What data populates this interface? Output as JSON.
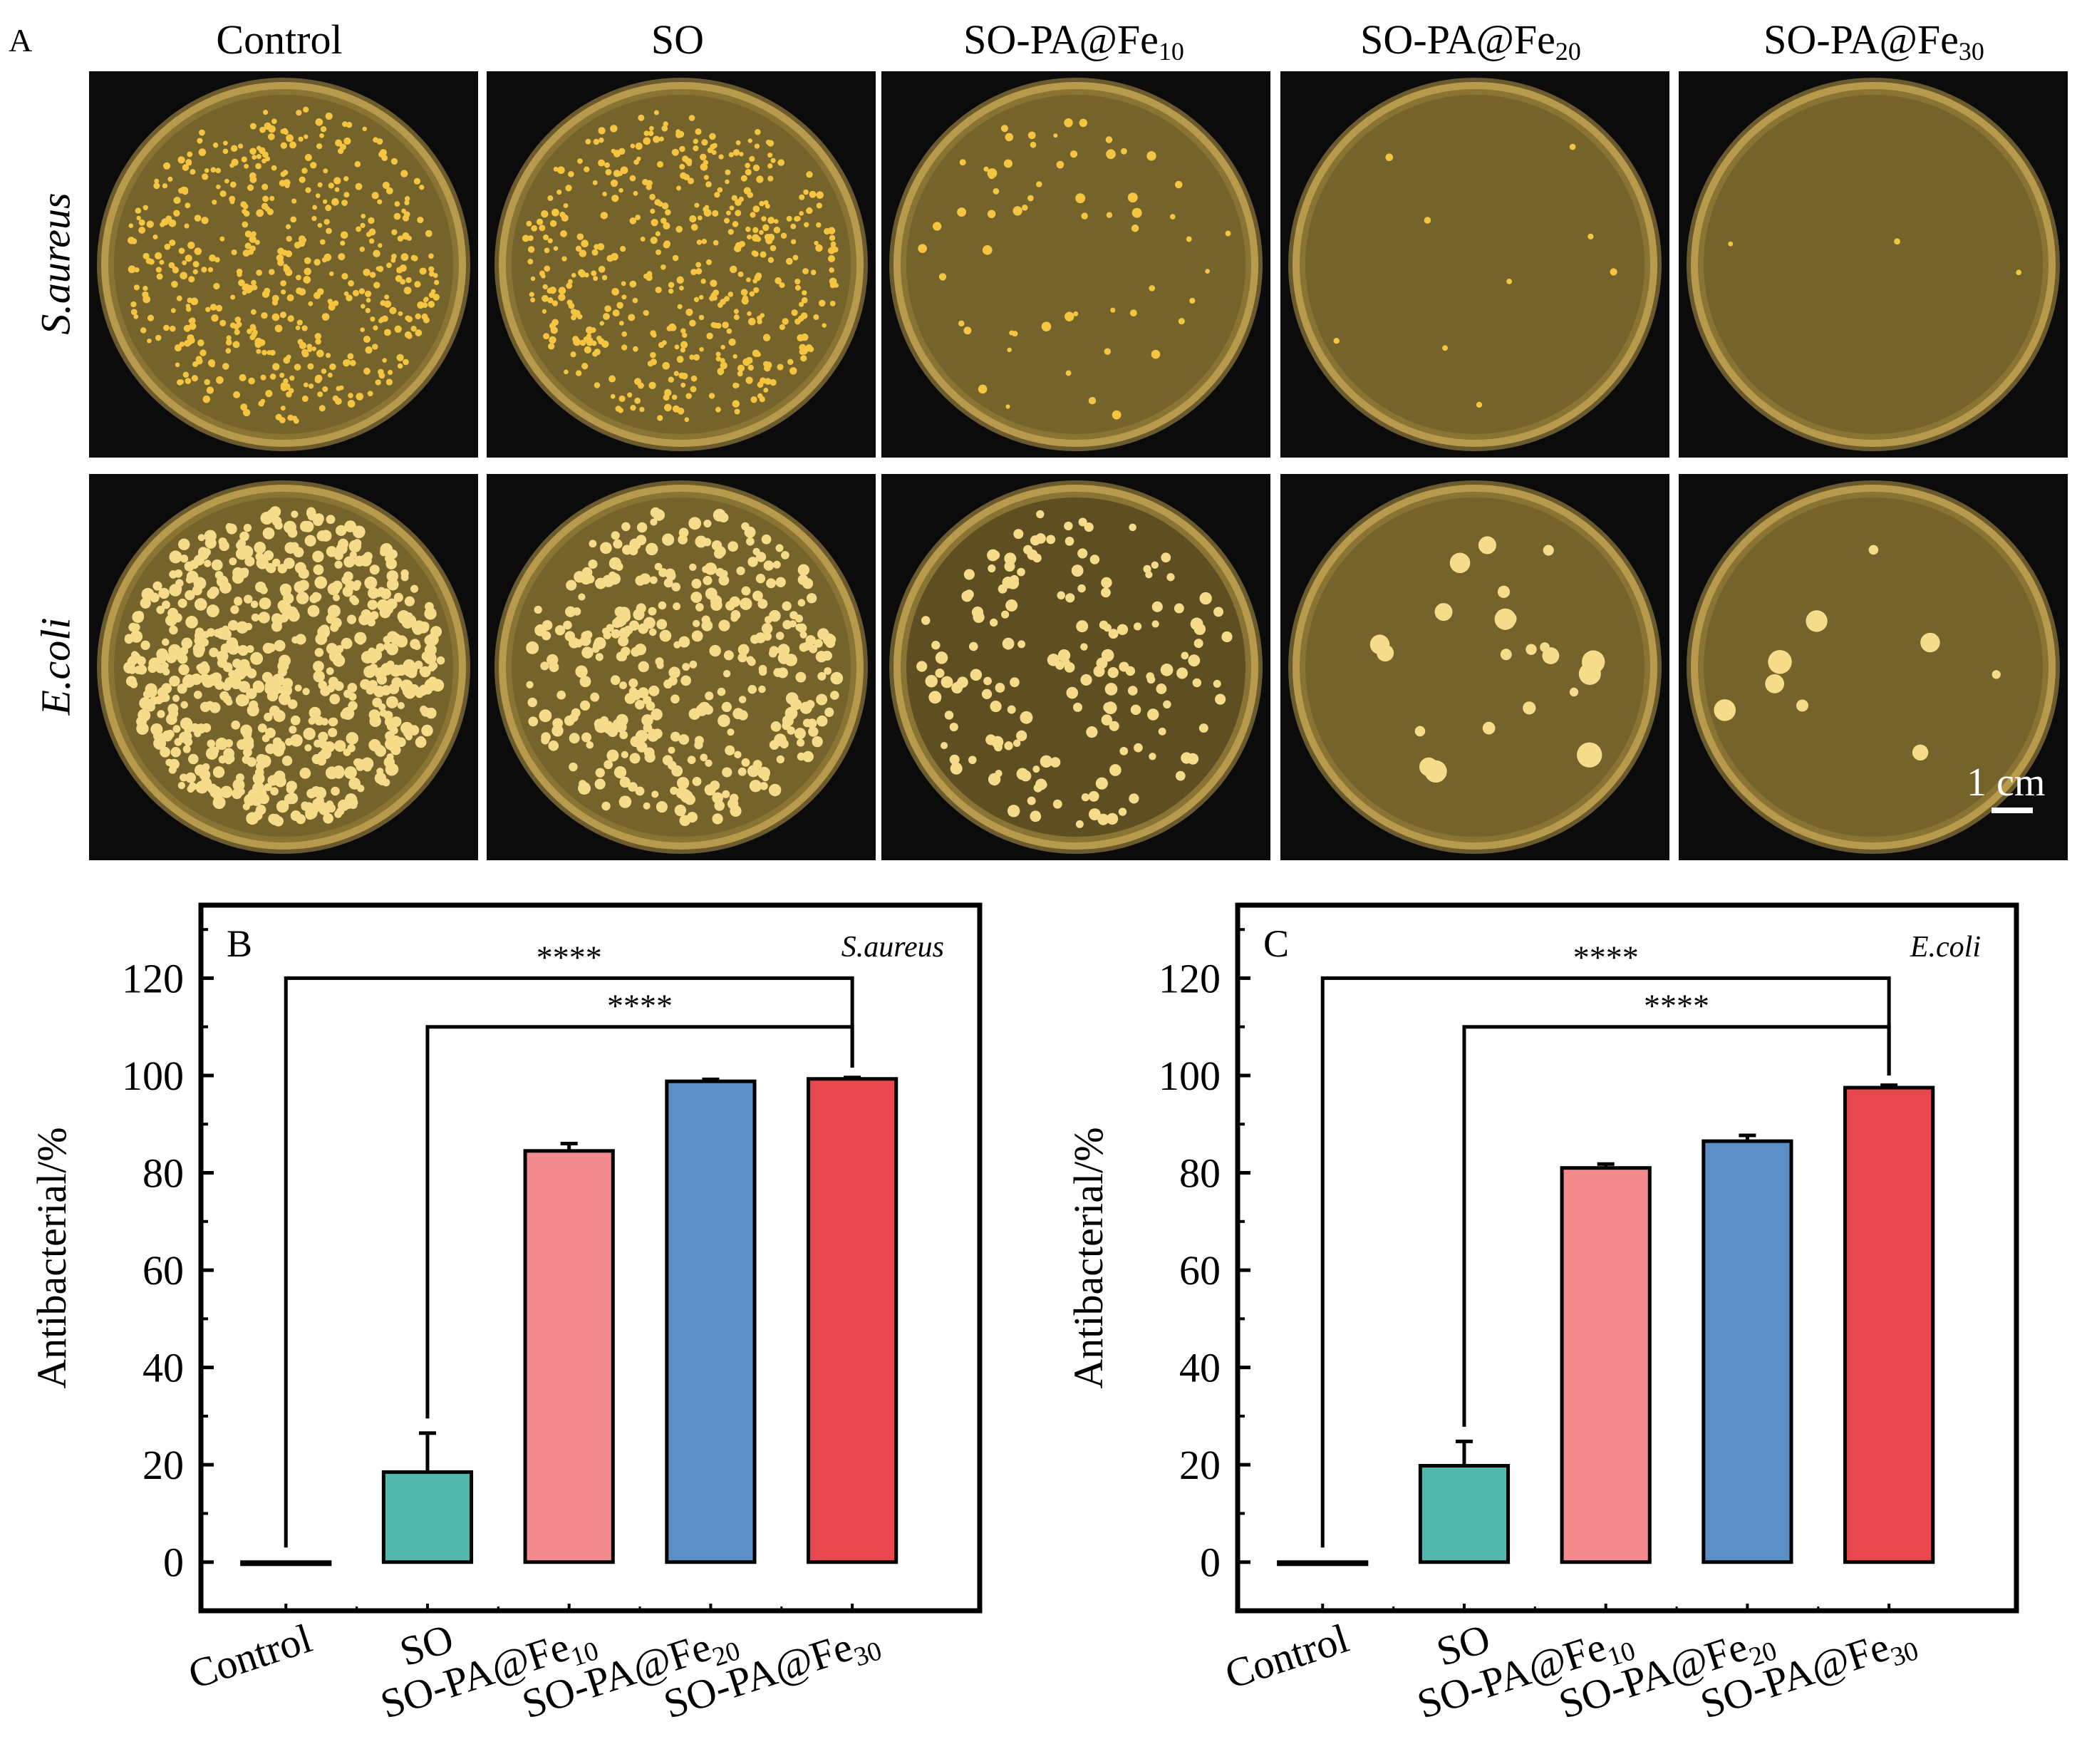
{
  "panel_a": {
    "letter": "A",
    "columns": [
      {
        "name": "Control",
        "sub": ""
      },
      {
        "name": "SO",
        "sub": ""
      },
      {
        "name": "SO-PA@Fe",
        "sub": "10"
      },
      {
        "name": "SO-PA@Fe",
        "sub": "20"
      },
      {
        "name": "SO-PA@Fe",
        "sub": "30"
      }
    ],
    "rows": [
      "S.aureus",
      "E.coli"
    ],
    "scale_label": "1 cm",
    "approx_colony_counts": {
      "S.aureus": [
        500,
        480,
        60,
        9,
        3
      ],
      "E.coli": [
        650,
        360,
        160,
        22,
        9
      ]
    }
  },
  "chart_data": [
    {
      "type": "bar",
      "panel": "B",
      "species": "S.aureus",
      "categories": [
        "Control",
        "SO",
        "SO-PA@Fe10",
        "SO-PA@Fe20",
        "SO-PA@Fe30"
      ],
      "values": [
        0,
        18.5,
        84.5,
        98.8,
        99.3
      ],
      "errors": [
        0,
        8.0,
        1.5,
        0.4,
        0.3
      ],
      "colors": [
        "#7d7476",
        "#52b8ad",
        "#f38b8e",
        "#5a8ec4",
        "#e8474d"
      ],
      "ylabel": "Antibacterial/%",
      "ylim": [
        -10,
        135
      ],
      "yticks": [
        0,
        20,
        40,
        60,
        80,
        100,
        120
      ],
      "significance": [
        {
          "from": "Control",
          "to": "SO-PA@Fe30",
          "label": "****"
        },
        {
          "from": "SO",
          "to": "SO-PA@Fe30",
          "label": "****"
        }
      ]
    },
    {
      "type": "bar",
      "panel": "C",
      "species": "E.coli",
      "categories": [
        "Control",
        "SO",
        "SO-PA@Fe10",
        "SO-PA@Fe20",
        "SO-PA@Fe30"
      ],
      "values": [
        0,
        19.8,
        81.0,
        86.5,
        97.5
      ],
      "errors": [
        0,
        5.0,
        0.8,
        1.2,
        0.5
      ],
      "colors": [
        "#7d7476",
        "#52b8ad",
        "#f38b8e",
        "#5a8ec4",
        "#e8474d"
      ],
      "ylabel": "Antibacterial/%",
      "ylim": [
        -10,
        135
      ],
      "yticks": [
        0,
        20,
        40,
        60,
        80,
        100,
        120
      ],
      "significance": [
        {
          "from": "Control",
          "to": "SO-PA@Fe30",
          "label": "****"
        },
        {
          "from": "SO",
          "to": "SO-PA@Fe30",
          "label": "****"
        }
      ]
    }
  ]
}
